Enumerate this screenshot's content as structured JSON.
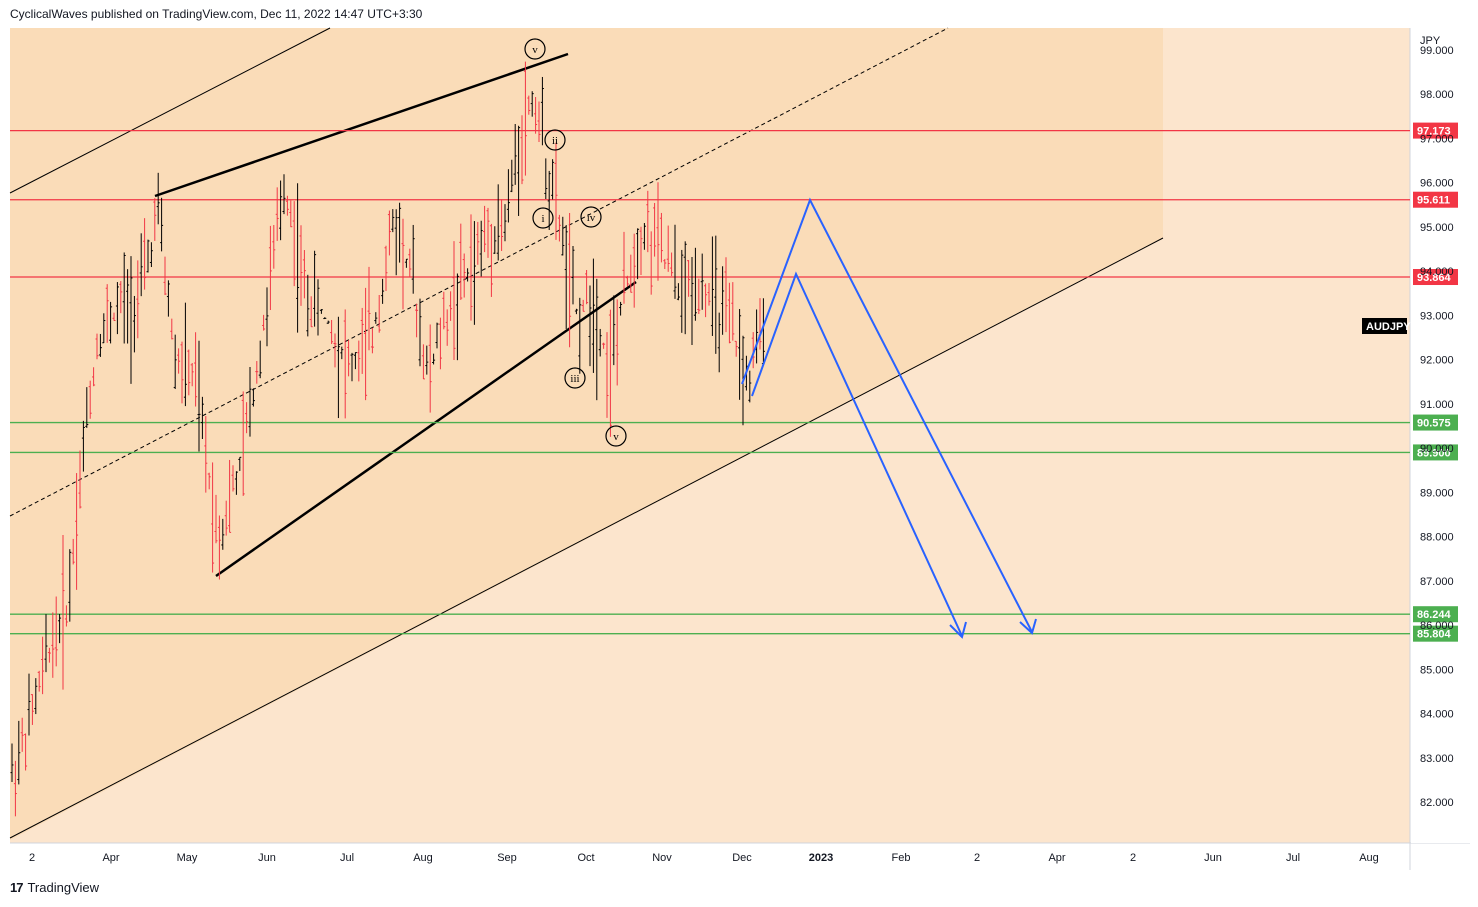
{
  "header": {
    "text": "CyclicalWaves published on TradingView.com, Dec 11, 2022 14:47 UTC+3:30"
  },
  "footer": {
    "brand": "TradingView",
    "logo_icon": "tradingview-logo-icon"
  },
  "chart_data": {
    "type": "line",
    "symbol": "AUDJPY",
    "currency_label": "JPY",
    "style": "ohlc-bars",
    "ylim": [
      81.0,
      98.8
    ],
    "y_ticks": [
      "82.000",
      "83.000",
      "84.000",
      "85.000",
      "86.000",
      "87.000",
      "88.000",
      "89.000",
      "90.000",
      "91.000",
      "92.000",
      "93.000",
      "94.000",
      "95.000",
      "96.000",
      "97.000",
      "98.000",
      "99.000"
    ],
    "x_ticks": [
      "2",
      "Apr",
      "May",
      "Jun",
      "Jul",
      "Aug",
      "Sep",
      "Oct",
      "Nov",
      "Dec",
      "2023",
      "Feb",
      "2",
      "Apr",
      "2",
      "Jun",
      "Jul",
      "Aug"
    ],
    "horizontal_levels": [
      {
        "value": 97.173,
        "label": "97.173",
        "color": "#f23645"
      },
      {
        "value": 95.611,
        "label": "95.611",
        "color": "#f23645"
      },
      {
        "value": 93.864,
        "label": "93.864",
        "color": "#f23645"
      },
      {
        "value": 90.575,
        "label": "90.575",
        "color": "#4caf50"
      },
      {
        "value": 89.9,
        "label": "89.900",
        "color": "#4caf50"
      },
      {
        "value": 86.244,
        "label": "86.244",
        "color": "#4caf50"
      },
      {
        "value": 85.804,
        "label": "85.804",
        "color": "#4caf50"
      }
    ],
    "wave_labels": [
      "v",
      "ii",
      "i",
      "iv",
      "iii",
      "v"
    ],
    "price_series": [
      {
        "x": "Mar 2022",
        "y": 82.5
      },
      {
        "x": "Mar 2022",
        "y": 85.5
      },
      {
        "x": "Mar 2022",
        "y": 89.5
      },
      {
        "x": "Apr 2022",
        "y": 92.5
      },
      {
        "x": "Apr 2022",
        "y": 93.8
      },
      {
        "x": "Apr 2022",
        "y": 95.6
      },
      {
        "x": "May 2022",
        "y": 91.5
      },
      {
        "x": "May 2022",
        "y": 88.5
      },
      {
        "x": "Jun 2022",
        "y": 94.0
      },
      {
        "x": "Jun 2022",
        "y": 96.8
      },
      {
        "x": "Jul 2022",
        "y": 93.0
      },
      {
        "x": "Jul 2022",
        "y": 91.2
      },
      {
        "x": "Aug 2022",
        "y": 95.6
      },
      {
        "x": "Aug 2022",
        "y": 92.5
      },
      {
        "x": "Aug 2022",
        "y": 95.0
      },
      {
        "x": "Sep 2022",
        "y": 98.6
      },
      {
        "x": "Sep 2022",
        "y": 96.8
      },
      {
        "x": "Sep 2022",
        "y": 93.5
      },
      {
        "x": "Oct 2022",
        "y": 91.0
      },
      {
        "x": "Oct 2022",
        "y": 95.6
      },
      {
        "x": "Nov 2022",
        "y": 94.2
      },
      {
        "x": "Nov 2022",
        "y": 93.5
      },
      {
        "x": "Dec 2022",
        "y": 91.2
      },
      {
        "x": "Dec 2022",
        "y": 92.8
      }
    ],
    "projection": [
      {
        "x": "Dec 2022",
        "y": 92.0
      },
      {
        "x": "Dec 2022",
        "y": 95.6
      },
      {
        "x": "Mar 2023",
        "y": 85.8
      }
    ]
  }
}
